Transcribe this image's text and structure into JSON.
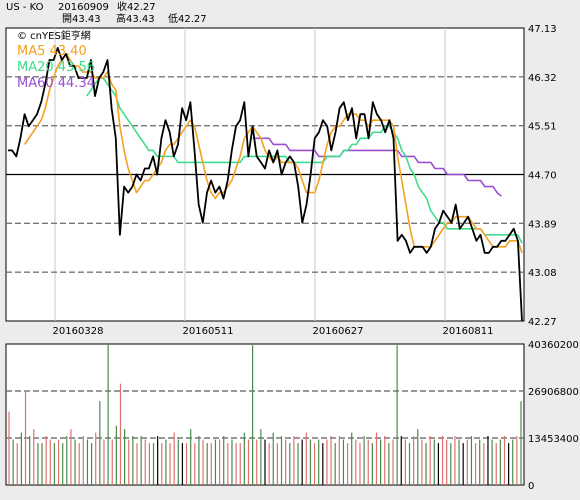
{
  "header": {
    "symbol": "US - KO",
    "date": "20160909",
    "close_label": "收42.27",
    "open_label": "開43.43",
    "high_label": "高43.43",
    "low_label": "低42.27"
  },
  "copyright": "© cnYES鉅亨網",
  "ma_labels": [
    {
      "text": "MA5 43.40",
      "color": "#f5a020"
    },
    {
      "text": "MA20 43.56",
      "color": "#3fdc8c"
    },
    {
      "text": "MA60 44.34",
      "color": "#9a4fd0"
    }
  ],
  "chart_data": [
    {
      "type": "line",
      "title": "US - KO",
      "x_tick_labels": [
        "20160328",
        "20160511",
        "20160627",
        "20160811"
      ],
      "y_tick_labels": [
        "47.13",
        "46.32",
        "45.51",
        "44.70",
        "43.89",
        "43.08",
        "42.27"
      ],
      "ylim": [
        42.27,
        47.13
      ],
      "reference_line": 44.7,
      "series": [
        {
          "name": "Close",
          "color": "#000000",
          "values": [
            45.1,
            45.1,
            45.0,
            45.3,
            45.7,
            45.5,
            45.6,
            45.7,
            45.9,
            46.2,
            46.6,
            46.6,
            46.8,
            46.6,
            46.7,
            46.5,
            46.5,
            46.3,
            46.3,
            46.3,
            46.6,
            46.0,
            46.3,
            46.4,
            46.6,
            45.8,
            45.3,
            43.7,
            44.5,
            44.4,
            44.5,
            44.7,
            44.6,
            44.8,
            44.8,
            45.0,
            44.7,
            45.3,
            45.6,
            45.4,
            45.0,
            45.2,
            45.8,
            45.6,
            45.9,
            45.1,
            44.2,
            43.9,
            44.4,
            44.6,
            44.4,
            44.5,
            44.3,
            44.6,
            45.1,
            45.5,
            45.6,
            45.9,
            45.0,
            45.5,
            45.0,
            44.9,
            44.8,
            45.1,
            44.9,
            45.1,
            44.7,
            44.9,
            45.0,
            44.9,
            44.5,
            43.9,
            44.2,
            44.7,
            45.3,
            45.4,
            45.6,
            45.5,
            45.1,
            45.4,
            45.8,
            45.9,
            45.6,
            45.8,
            45.3,
            45.7,
            45.7,
            45.3,
            45.9,
            45.7,
            45.6,
            45.4,
            45.6,
            45.3,
            43.6,
            43.7,
            43.6,
            43.4,
            43.5,
            43.5,
            43.5,
            43.4,
            43.5,
            43.8,
            43.9,
            44.1,
            44.0,
            43.9,
            44.2,
            43.8,
            43.9,
            44.0,
            43.8,
            43.6,
            43.7,
            43.4,
            43.4,
            43.5,
            43.5,
            43.6,
            43.6,
            43.7,
            43.8,
            43.6,
            42.27
          ]
        },
        {
          "name": "MA5",
          "color": "#f5a020",
          "values": [
            null,
            null,
            null,
            null,
            45.2,
            45.3,
            45.4,
            45.5,
            45.6,
            45.8,
            46.1,
            46.3,
            46.5,
            46.6,
            46.7,
            46.6,
            46.5,
            46.5,
            46.4,
            46.4,
            46.4,
            46.3,
            46.3,
            46.3,
            46.4,
            46.2,
            46.1,
            45.5,
            45.1,
            44.8,
            44.6,
            44.4,
            44.5,
            44.6,
            44.6,
            44.7,
            44.8,
            44.9,
            45.1,
            45.2,
            45.2,
            45.3,
            45.4,
            45.5,
            45.6,
            45.5,
            45.2,
            44.9,
            44.6,
            44.4,
            44.3,
            44.4,
            44.4,
            44.5,
            44.6,
            44.8,
            45.0,
            45.3,
            45.4,
            45.5,
            45.4,
            45.3,
            45.1,
            45.0,
            44.9,
            45.0,
            44.9,
            44.9,
            44.9,
            44.9,
            44.8,
            44.6,
            44.4,
            44.4,
            44.4,
            44.6,
            44.9,
            45.2,
            45.4,
            45.5,
            45.5,
            45.6,
            45.7,
            45.7,
            45.7,
            45.6,
            45.6,
            45.5,
            45.6,
            45.6,
            45.6,
            45.6,
            45.6,
            45.5,
            45.0,
            44.6,
            44.2,
            43.8,
            43.5,
            43.5,
            43.5,
            43.5,
            43.5,
            43.6,
            43.7,
            43.8,
            43.9,
            43.9,
            44.0,
            44.0,
            44.0,
            44.0,
            43.9,
            43.8,
            43.8,
            43.7,
            43.6,
            43.5,
            43.5,
            43.5,
            43.5,
            43.6,
            43.6,
            43.6,
            43.4
          ]
        },
        {
          "name": "MA20",
          "color": "#3fdc8c",
          "values": [
            null,
            null,
            null,
            null,
            null,
            null,
            null,
            null,
            null,
            null,
            null,
            null,
            null,
            null,
            null,
            null,
            null,
            null,
            null,
            46.0,
            46.1,
            46.2,
            46.3,
            46.3,
            46.2,
            46.1,
            46.0,
            45.8,
            45.7,
            45.6,
            45.5,
            45.4,
            45.3,
            45.2,
            45.1,
            45.1,
            45.0,
            45.0,
            45.0,
            45.0,
            45.0,
            44.9,
            44.9,
            44.9,
            44.9,
            44.9,
            44.9,
            44.9,
            44.9,
            44.9,
            44.9,
            44.9,
            44.9,
            44.9,
            44.9,
            44.9,
            44.9,
            45.0,
            45.0,
            45.0,
            45.0,
            45.0,
            45.0,
            45.0,
            45.0,
            45.0,
            45.0,
            45.0,
            44.9,
            44.9,
            44.9,
            44.9,
            44.9,
            44.9,
            44.9,
            44.9,
            44.9,
            45.0,
            45.0,
            45.0,
            45.0,
            45.1,
            45.1,
            45.2,
            45.2,
            45.3,
            45.3,
            45.3,
            45.4,
            45.4,
            45.4,
            45.5,
            45.5,
            45.4,
            45.3,
            45.1,
            45.0,
            44.8,
            44.7,
            44.5,
            44.4,
            44.3,
            44.1,
            44.0,
            43.9,
            43.9,
            43.8,
            43.8,
            43.8,
            43.8,
            43.8,
            43.8,
            43.8,
            43.8,
            43.8,
            43.7,
            43.7,
            43.7,
            43.7,
            43.7,
            43.7,
            43.7,
            43.7,
            43.7,
            43.56
          ]
        },
        {
          "name": "MA60",
          "color": "#9a4fd0",
          "values": [
            null,
            null,
            null,
            null,
            null,
            null,
            null,
            null,
            null,
            null,
            null,
            null,
            null,
            null,
            null,
            null,
            null,
            null,
            null,
            null,
            null,
            null,
            null,
            null,
            null,
            null,
            null,
            null,
            null,
            null,
            null,
            null,
            null,
            null,
            null,
            null,
            null,
            null,
            null,
            null,
            null,
            null,
            null,
            null,
            null,
            null,
            null,
            null,
            null,
            null,
            null,
            null,
            null,
            null,
            null,
            null,
            null,
            null,
            null,
            45.3,
            45.3,
            45.3,
            45.3,
            45.3,
            45.2,
            45.2,
            45.2,
            45.2,
            45.1,
            45.1,
            45.1,
            45.1,
            45.1,
            45.1,
            45.1,
            45.0,
            45.0,
            45.0,
            45.0,
            45.0,
            45.0,
            45.1,
            45.1,
            45.1,
            45.1,
            45.1,
            45.1,
            45.1,
            45.1,
            45.1,
            45.1,
            45.1,
            45.1,
            45.1,
            45.1,
            45.0,
            45.0,
            45.0,
            45.0,
            44.9,
            44.9,
            44.9,
            44.9,
            44.8,
            44.8,
            44.8,
            44.7,
            44.7,
            44.7,
            44.7,
            44.7,
            44.6,
            44.6,
            44.6,
            44.6,
            44.5,
            44.5,
            44.5,
            44.4,
            44.34,
            null,
            null,
            null,
            null,
            null
          ]
        }
      ]
    },
    {
      "type": "bar",
      "y_tick_labels": [
        "40360200",
        "26906800",
        "13453400",
        "0"
      ],
      "ylim": [
        0,
        40360200
      ],
      "volumes": [
        21000000,
        13000000,
        12000000,
        15000000,
        27000000,
        14000000,
        16000000,
        12000000,
        12000000,
        14000000,
        13000000,
        12000000,
        13000000,
        12000000,
        14000000,
        16000000,
        13000000,
        12000000,
        14000000,
        13000000,
        12000000,
        15000000,
        24000000,
        13000000,
        41000000,
        13000000,
        17000000,
        29000000,
        16000000,
        13000000,
        14000000,
        12000000,
        14000000,
        13000000,
        12000000,
        12000000,
        14000000,
        12000000,
        13000000,
        12000000,
        15000000,
        13000000,
        12000000,
        12000000,
        16000000,
        12000000,
        14000000,
        13000000,
        12000000,
        12000000,
        13000000,
        13000000,
        14000000,
        12000000,
        13000000,
        12000000,
        12000000,
        15000000,
        13000000,
        40000000,
        13000000,
        16000000,
        13000000,
        12000000,
        15000000,
        12000000,
        14000000,
        13000000,
        12000000,
        14000000,
        12000000,
        13000000,
        15000000,
        13000000,
        12000000,
        13000000,
        12000000,
        13000000,
        14000000,
        12000000,
        14000000,
        13000000,
        12000000,
        15000000,
        13000000,
        12000000,
        14000000,
        13000000,
        12000000,
        15000000,
        13000000,
        14000000,
        12000000,
        13000000,
        40000000,
        14000000,
        13000000,
        12000000,
        14000000,
        16000000,
        13000000,
        12000000,
        14000000,
        13000000,
        12000000,
        14000000,
        13000000,
        12000000,
        14000000,
        13000000,
        12000000,
        13000000,
        14000000,
        12000000,
        13000000,
        12000000,
        14000000,
        13000000,
        12000000,
        13000000,
        14000000,
        12000000,
        13000000,
        14000000,
        24000000
      ],
      "colors": [
        "r",
        "g",
        "r",
        "g",
        "r",
        "g",
        "r",
        "g",
        "g",
        "r",
        "r",
        "g",
        "r",
        "g",
        "g",
        "r",
        "g",
        "r",
        "r",
        "g",
        "g",
        "r",
        "g",
        "r",
        "g",
        "r",
        "g",
        "r",
        "g",
        "r",
        "g",
        "r",
        "g",
        "r",
        "r",
        "g",
        "k",
        "r",
        "g",
        "r",
        "r",
        "g",
        "k",
        "r",
        "g",
        "r",
        "g",
        "r",
        "g",
        "r",
        "g",
        "r",
        "g",
        "r",
        "g",
        "r",
        "r",
        "g",
        "r",
        "g",
        "r",
        "g",
        "k",
        "r",
        "g",
        "r",
        "g",
        "r",
        "g",
        "r",
        "g",
        "k",
        "r",
        "g",
        "r",
        "g",
        "k",
        "r",
        "r",
        "g",
        "r",
        "g",
        "r",
        "g",
        "r",
        "r",
        "g",
        "r",
        "g",
        "r",
        "g",
        "r",
        "g",
        "r",
        "g",
        "k",
        "r",
        "g",
        "r",
        "g",
        "r",
        "g",
        "r",
        "g",
        "k",
        "r",
        "r",
        "g",
        "r",
        "g",
        "k",
        "r",
        "g",
        "r",
        "g",
        "r",
        "k",
        "g",
        "r",
        "g",
        "r",
        "k",
        "g",
        "r",
        "g"
      ]
    }
  ],
  "colors": {
    "background": "#ececec",
    "plot_bg": "#ffffff",
    "close": "#000000",
    "up_volume": "#e07070",
    "down_volume": "#4a8a4a",
    "neutral_volume": "#000000"
  }
}
